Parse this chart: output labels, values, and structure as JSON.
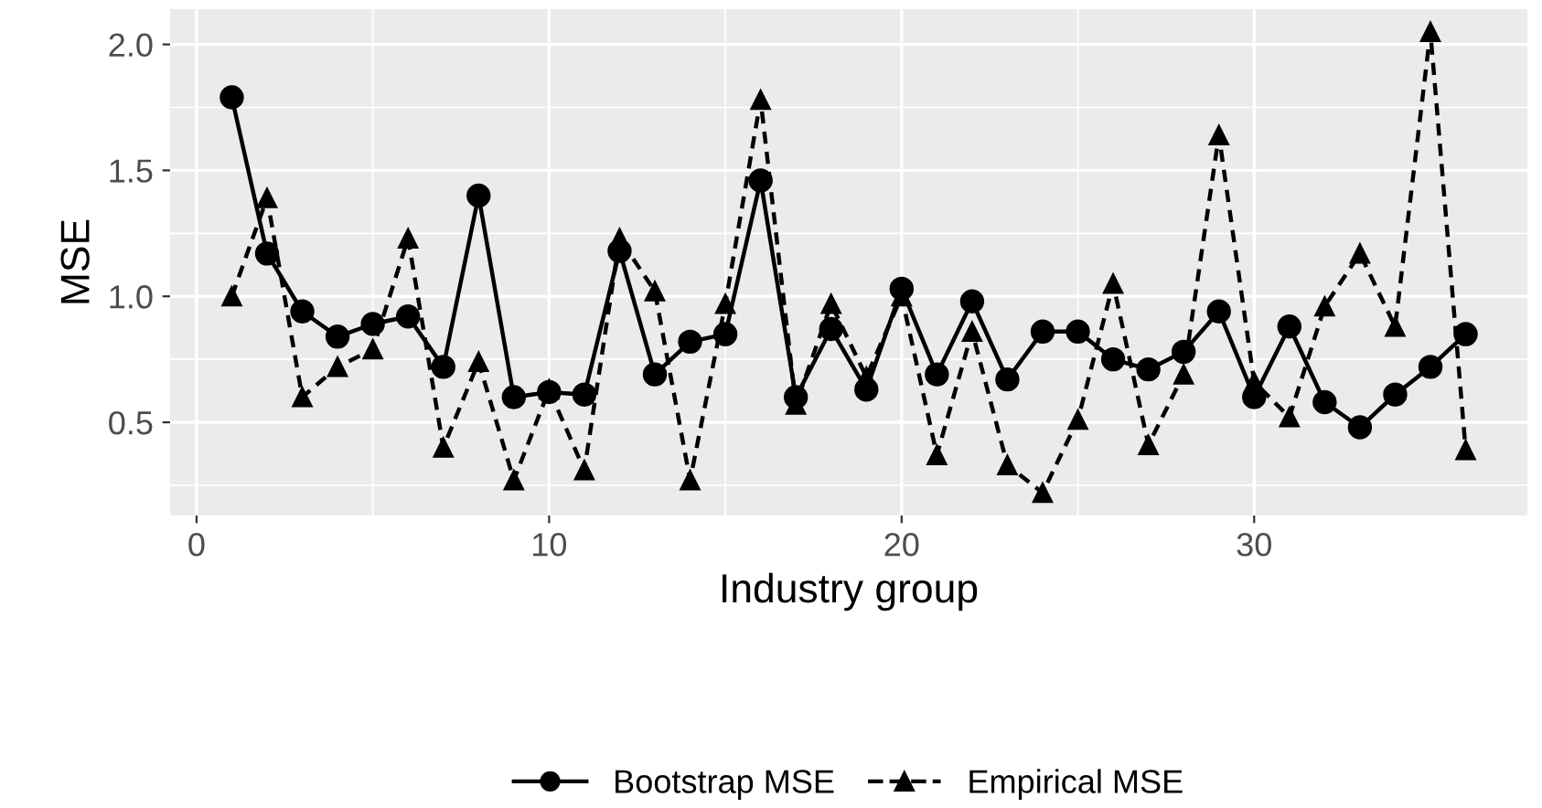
{
  "chart_data": {
    "type": "line",
    "xlabel": "Industry group",
    "ylabel": "MSE",
    "x": [
      1,
      2,
      3,
      4,
      5,
      6,
      7,
      8,
      9,
      10,
      11,
      12,
      13,
      14,
      15,
      16,
      17,
      18,
      19,
      20,
      21,
      22,
      23,
      24,
      25,
      26,
      27,
      28,
      29,
      30,
      31,
      32,
      33,
      34,
      35,
      36
    ],
    "series": [
      {
        "name": "Bootstrap MSE",
        "color": "#000000",
        "marker": "circle",
        "line_style": "solid",
        "values": [
          1.79,
          1.17,
          0.94,
          0.84,
          0.89,
          0.92,
          0.72,
          1.4,
          0.6,
          0.62,
          0.61,
          1.18,
          0.69,
          0.82,
          0.85,
          1.46,
          0.6,
          0.87,
          0.63,
          1.03,
          0.69,
          0.98,
          0.67,
          0.86,
          0.86,
          0.75,
          0.71,
          0.78,
          0.94,
          0.6,
          0.88,
          0.58,
          0.48,
          0.61,
          0.72,
          0.85
        ]
      },
      {
        "name": "Empirical MSE",
        "color": "#000000",
        "marker": "triangle",
        "line_style": "dashed",
        "values": [
          1.0,
          1.39,
          0.6,
          0.72,
          0.79,
          1.23,
          0.4,
          0.74,
          0.27,
          0.63,
          0.31,
          1.23,
          1.02,
          0.27,
          0.97,
          1.78,
          0.57,
          0.97,
          0.68,
          1.0,
          0.37,
          0.86,
          0.33,
          0.22,
          0.51,
          1.05,
          0.41,
          0.69,
          1.64,
          0.66,
          0.52,
          0.96,
          1.17,
          0.88,
          2.05,
          0.39
        ]
      }
    ],
    "xlim": [
      -0.75,
      37.75
    ],
    "ylim": [
      0.13,
      2.14
    ],
    "xticks": [
      0,
      10,
      20,
      30
    ],
    "yticks": [
      {
        "value": 0.5,
        "label": "0.5"
      },
      {
        "value": 1.0,
        "label": "1.0"
      },
      {
        "value": 1.5,
        "label": "1.5"
      },
      {
        "value": 2.0,
        "label": "2.0"
      }
    ],
    "grid": true,
    "legend": "bottom"
  }
}
